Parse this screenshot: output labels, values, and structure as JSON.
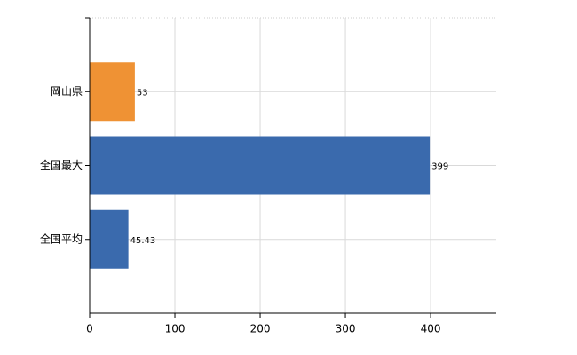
{
  "chart_data": {
    "type": "barh",
    "categories": [
      "岡山県",
      "全国最大",
      "全国平均"
    ],
    "values": [
      53,
      399,
      45.43
    ],
    "colors": [
      "#ef9234",
      "#3a6aad",
      "#3a6aad"
    ],
    "xlim": [
      0,
      477
    ],
    "xticks": [
      0,
      100,
      200,
      300,
      400
    ],
    "grid": true
  }
}
